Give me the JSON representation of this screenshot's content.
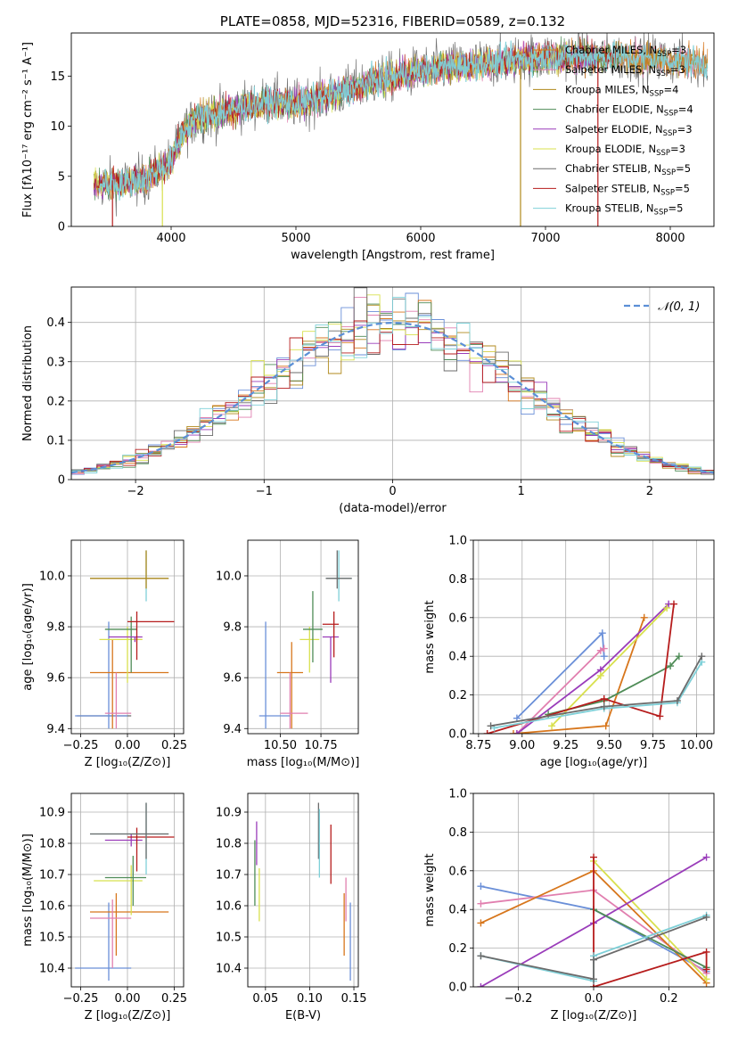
{
  "palette": [
    "#d7761c",
    "#e17faf",
    "#b08a1c",
    "#4f8c57",
    "#9a3cba",
    "#d8e04d",
    "#6b6b6b",
    "#b61c1c",
    "#7fd0d8"
  ],
  "chart_data": [
    {
      "id": "spectrum",
      "type": "line",
      "title": "PLATE=0858, MJD=52316, FIBERID=0589, z=0.132",
      "xlabel": "wavelength [Angstrom, rest frame]",
      "ylabel": "Flux [fλ10⁻¹⁷ erg cm⁻² s⁻¹ A⁻¹]",
      "xlim": [
        3200,
        8350
      ],
      "ylim": [
        0,
        19.3
      ],
      "xticks": [
        4000,
        5000,
        6000,
        7000,
        8000
      ],
      "yticks": [
        0,
        5,
        10,
        15
      ],
      "grid": false,
      "legend_position": "top-right",
      "continuum": {
        "x": [
          3380,
          3500,
          3600,
          3700,
          3800,
          3900,
          4000,
          4100,
          4200,
          4300,
          4400,
          4600,
          4800,
          5000,
          5200,
          5400,
          5600,
          5800,
          6000,
          6200,
          6400,
          6600,
          6800,
          7000,
          7200,
          7400,
          7600,
          7800,
          8000,
          8200,
          8300
        ],
        "y": [
          4.0,
          4.3,
          4.2,
          4.6,
          4.7,
          5.7,
          6.5,
          9.5,
          10.8,
          11.0,
          11.3,
          12.0,
          12.5,
          12.2,
          12.8,
          13.5,
          14.4,
          15.0,
          15.5,
          15.9,
          16.1,
          16.4,
          16.7,
          16.9,
          17.0,
          17.0,
          16.9,
          16.8,
          16.6,
          16.4,
          16.1
        ]
      },
      "series": [
        {
          "name": "Chabrier MILES, N",
          "sub": "SSP",
          "n": "=3"
        },
        {
          "name": "Salpeter MILES, N",
          "sub": "SSP",
          "n": "=3"
        },
        {
          "name": "Kroupa MILES, N",
          "sub": "SSP",
          "n": "=4"
        },
        {
          "name": "Chabrier ELODIE, N",
          "sub": "SSP",
          "n": "=4"
        },
        {
          "name": "Salpeter ELODIE, N",
          "sub": "SSP",
          "n": "=3"
        },
        {
          "name": "Kroupa ELODIE, N",
          "sub": "SSP",
          "n": "=3"
        },
        {
          "name": "Chabrier STELIB, N",
          "sub": "SSP",
          "n": "=5"
        },
        {
          "name": "Salpeter STELIB, N",
          "sub": "SSP",
          "n": "=5"
        },
        {
          "name": "Kroupa STELIB, N",
          "sub": "SSP",
          "n": "=5"
        }
      ],
      "spikes": [
        {
          "x": 3530,
          "y0": 0,
          "y1": 4.6
        },
        {
          "x": 3930,
          "y0": 0,
          "y1": 5.0
        },
        {
          "x": 6800,
          "y0": 0,
          "y1": 16.0
        },
        {
          "x": 7420,
          "y0": 0,
          "y1": 16.5
        }
      ]
    },
    {
      "id": "residuals",
      "type": "histogram",
      "xlabel": "(data-model)/error",
      "ylabel": "Normed distribution",
      "xlim": [
        -2.5,
        2.5
      ],
      "ylim": [
        0,
        0.49
      ],
      "xticks": [
        -2,
        -1,
        0,
        1,
        2
      ],
      "yticks": [
        0.0,
        0.1,
        0.2,
        0.3,
        0.4
      ],
      "grid": true,
      "bin_edges_start": -2.5,
      "bin_width": 0.1,
      "legend": [
        {
          "label": "𝒩(0, 1)",
          "style": "dashed"
        }
      ],
      "legend_position": "top-right"
    },
    {
      "id": "age-vs-Z",
      "type": "errorbar",
      "xlabel": "Z [log₁₀(Z/Z⊙)]",
      "ylabel": "age  [log₁₀(age/yr)]",
      "xlim": [
        -0.3,
        0.3
      ],
      "ylim": [
        9.38,
        10.14
      ],
      "xticks": [
        -0.25,
        0.0,
        0.25
      ],
      "xticklabels": [
        "−0.25",
        "0.00",
        "0.25"
      ],
      "yticks": [
        9.4,
        9.6,
        9.8,
        10.0
      ],
      "yticklabels": [
        "9.4",
        "9.6",
        "9.8",
        "10.0"
      ],
      "grid": true,
      "points": [
        {
          "x": -0.27,
          "xl": -0.27,
          "xh": 0.02,
          "y": 9.45,
          "yl": 9.45,
          "yh": 9.45,
          "c": 6
        },
        {
          "x": -0.1,
          "xl": -0.28,
          "xh": 0.0,
          "y": 9.45,
          "yl": 9.4,
          "yh": 9.82,
          "c": 9
        },
        {
          "x": -0.08,
          "xl": -0.2,
          "xh": 0.22,
          "y": 9.62,
          "yl": 9.4,
          "yh": 9.75,
          "c": 0
        },
        {
          "x": -0.06,
          "xl": -0.12,
          "xh": 0.02,
          "y": 9.46,
          "yl": 9.4,
          "yh": 9.62,
          "c": 1
        },
        {
          "x": 0.0,
          "xl": -0.15,
          "xh": 0.08,
          "y": 9.75,
          "yl": 9.58,
          "yh": 9.8,
          "c": 5
        },
        {
          "x": 0.02,
          "xl": -0.12,
          "xh": 0.05,
          "y": 9.79,
          "yl": 9.62,
          "yh": 9.84,
          "c": 3
        },
        {
          "x": 0.04,
          "xl": -0.1,
          "xh": 0.08,
          "y": 9.76,
          "yl": 9.74,
          "yh": 9.76,
          "c": 4
        },
        {
          "x": 0.05,
          "xl": 0.0,
          "xh": 0.25,
          "y": 9.82,
          "yl": 9.67,
          "yh": 9.86,
          "c": 7
        },
        {
          "x": 0.1,
          "xl": -0.2,
          "xh": 0.22,
          "y": 9.99,
          "yl": 9.9,
          "yh": 10.1,
          "c": 8
        },
        {
          "x": 0.1,
          "xl": -0.2,
          "xh": 0.22,
          "y": 9.99,
          "yl": 9.95,
          "yh": 10.1,
          "c": 2
        }
      ]
    },
    {
      "id": "age-vs-mass",
      "type": "errorbar",
      "xlabel": "mass [log₁₀(M/M⊙)]",
      "ylabel": "",
      "xlim": [
        10.3,
        10.98
      ],
      "ylim": [
        9.38,
        10.14
      ],
      "xticks": [
        10.5,
        10.75
      ],
      "xticklabels": [
        "10.50",
        "10.75"
      ],
      "yticks": [
        9.4,
        9.6,
        9.8,
        10.0
      ],
      "yticklabels": [
        "9.4",
        "9.6",
        "9.8",
        "10.0"
      ],
      "grid": true,
      "points": [
        {
          "x": 10.41,
          "xl": 10.37,
          "xh": 10.56,
          "y": 9.45,
          "yl": 9.4,
          "yh": 9.82,
          "c": 9
        },
        {
          "x": 10.57,
          "xl": 10.48,
          "xh": 10.64,
          "y": 9.62,
          "yl": 9.4,
          "yh": 9.74,
          "c": 0
        },
        {
          "x": 10.56,
          "xl": 10.5,
          "xh": 10.67,
          "y": 9.46,
          "yl": 9.4,
          "yh": 9.62,
          "c": 1
        },
        {
          "x": 10.68,
          "xl": 10.62,
          "xh": 10.74,
          "y": 9.75,
          "yl": 9.62,
          "yh": 9.8,
          "c": 5
        },
        {
          "x": 10.7,
          "xl": 10.64,
          "xh": 10.76,
          "y": 9.79,
          "yl": 9.66,
          "yh": 9.94,
          "c": 3
        },
        {
          "x": 10.81,
          "xl": 10.76,
          "xh": 10.86,
          "y": 9.76,
          "yl": 9.58,
          "yh": 9.76,
          "c": 4
        },
        {
          "x": 10.83,
          "xl": 10.76,
          "xh": 10.86,
          "y": 9.81,
          "yl": 9.68,
          "yh": 9.86,
          "c": 7
        },
        {
          "x": 10.86,
          "xl": 10.78,
          "xh": 10.94,
          "y": 9.99,
          "yl": 9.9,
          "yh": 10.1,
          "c": 8
        },
        {
          "x": 10.85,
          "xl": 10.78,
          "xh": 10.94,
          "y": 9.99,
          "yl": 9.95,
          "yh": 10.1,
          "c": 6
        }
      ]
    },
    {
      "id": "massweight-vs-age",
      "type": "line",
      "xlabel": "age  [log₁₀(age/yr)]",
      "ylabel": "mass weight",
      "xlim": [
        8.72,
        10.1
      ],
      "ylim": [
        0,
        1
      ],
      "xticks": [
        8.75,
        9.0,
        9.25,
        9.5,
        9.75,
        10.0
      ],
      "xticklabels": [
        "8.75",
        "9.00",
        "9.25",
        "9.50",
        "9.75",
        "10.00"
      ],
      "yticks": [
        0.0,
        0.2,
        0.4,
        0.6,
        0.8,
        1.0
      ],
      "yticklabels": [
        "0.0",
        "0.2",
        "0.4",
        "0.6",
        "0.8",
        "1.0"
      ],
      "grid": true,
      "series": [
        {
          "c": 9,
          "x": [
            8.97,
            9.46,
            9.47
          ],
          "y": [
            0.08,
            0.52,
            0.4
          ]
        },
        {
          "c": 1,
          "x": [
            8.97,
            9.45,
            9.47
          ],
          "y": [
            0.0,
            0.43,
            0.44
          ]
        },
        {
          "c": 0,
          "x": [
            8.95,
            9.48,
            9.7
          ],
          "y": [
            0.0,
            0.04,
            0.6
          ]
        },
        {
          "c": 4,
          "x": [
            8.97,
            9.45,
            9.84
          ],
          "y": [
            0.0,
            0.33,
            0.67
          ]
        },
        {
          "c": 5,
          "x": [
            9.17,
            9.45,
            9.83
          ],
          "y": [
            0.04,
            0.3,
            0.65
          ]
        },
        {
          "c": 3,
          "x": [
            9.15,
            9.47,
            9.85,
            9.9
          ],
          "y": [
            0.1,
            0.17,
            0.35,
            0.4
          ]
        },
        {
          "c": 7,
          "x": [
            8.8,
            9.47,
            9.79,
            9.87
          ],
          "y": [
            0.0,
            0.18,
            0.09,
            0.67
          ]
        },
        {
          "c": 8,
          "x": [
            8.84,
            9.47,
            9.89,
            10.03
          ],
          "y": [
            0.03,
            0.13,
            0.16,
            0.37
          ]
        },
        {
          "c": 6,
          "x": [
            8.82,
            9.47,
            9.89,
            10.03
          ],
          "y": [
            0.04,
            0.14,
            0.17,
            0.4
          ]
        }
      ]
    },
    {
      "id": "mass-vs-Z",
      "type": "errorbar",
      "xlabel": "Z [log₁₀(Z/Z⊙)]",
      "ylabel": "mass [log₁₀(M/M⊙)]",
      "xlim": [
        -0.3,
        0.3
      ],
      "ylim": [
        10.34,
        10.96
      ],
      "xticks": [
        -0.25,
        0.0,
        0.25
      ],
      "xticklabels": [
        "−0.25",
        "0.00",
        "0.25"
      ],
      "yticks": [
        10.4,
        10.5,
        10.6,
        10.7,
        10.8,
        10.9
      ],
      "yticklabels": [
        "10.4",
        "10.5",
        "10.6",
        "10.7",
        "10.8",
        "10.9"
      ],
      "grid": true,
      "points": [
        {
          "x": -0.1,
          "xl": -0.28,
          "xh": 0.02,
          "y": 10.4,
          "yl": 10.36,
          "yh": 10.61,
          "c": 9
        },
        {
          "x": -0.06,
          "xl": -0.2,
          "xh": 0.22,
          "y": 10.58,
          "yl": 10.44,
          "yh": 10.64,
          "c": 0
        },
        {
          "x": -0.08,
          "xl": -0.2,
          "xh": 0.02,
          "y": 10.56,
          "yl": 10.4,
          "yh": 10.62,
          "c": 1
        },
        {
          "x": 0.02,
          "xl": -0.18,
          "xh": 0.08,
          "y": 10.68,
          "yl": 10.57,
          "yh": 10.73,
          "c": 5
        },
        {
          "x": 0.03,
          "xl": -0.12,
          "xh": 0.1,
          "y": 10.69,
          "yl": 10.6,
          "yh": 10.76,
          "c": 3
        },
        {
          "x": 0.02,
          "xl": -0.12,
          "xh": 0.08,
          "y": 10.81,
          "yl": 10.79,
          "yh": 10.83,
          "c": 4
        },
        {
          "x": 0.05,
          "xl": 0.0,
          "xh": 0.25,
          "y": 10.82,
          "yl": 10.71,
          "yh": 10.85,
          "c": 7
        },
        {
          "x": 0.1,
          "xl": -0.2,
          "xh": 0.22,
          "y": 10.83,
          "yl": 10.7,
          "yh": 10.93,
          "c": 8
        },
        {
          "x": 0.1,
          "xl": -0.2,
          "xh": 0.22,
          "y": 10.83,
          "yl": 10.75,
          "yh": 10.93,
          "c": 6
        }
      ]
    },
    {
      "id": "mass-vs-ebv",
      "type": "errorbar",
      "xlabel": "E(B-V)",
      "ylabel": "",
      "xlim": [
        0.03,
        0.155
      ],
      "ylim": [
        10.34,
        10.96
      ],
      "xticks": [
        0.05,
        0.1,
        0.15
      ],
      "xticklabels": [
        "0.05",
        "0.10",
        "0.15"
      ],
      "yticks": [
        10.4,
        10.5,
        10.6,
        10.7,
        10.8,
        10.9
      ],
      "yticklabels": [
        "10.4",
        "10.5",
        "10.6",
        "10.7",
        "10.8",
        "10.9"
      ],
      "grid": true,
      "points": [
        {
          "x": 0.038,
          "xl": 0.038,
          "xh": 0.038,
          "y": 10.7,
          "yl": 10.6,
          "yh": 10.81,
          "c": 3
        },
        {
          "x": 0.04,
          "xl": 0.04,
          "xh": 0.04,
          "y": 10.8,
          "yl": 10.73,
          "yh": 10.87,
          "c": 4
        },
        {
          "x": 0.043,
          "xl": 0.043,
          "xh": 0.043,
          "y": 10.62,
          "yl": 10.55,
          "yh": 10.72,
          "c": 5
        },
        {
          "x": 0.11,
          "xl": 0.11,
          "xh": 0.11,
          "y": 10.85,
          "yl": 10.75,
          "yh": 10.93,
          "c": 6
        },
        {
          "x": 0.111,
          "xl": 0.111,
          "xh": 0.111,
          "y": 10.8,
          "yl": 10.69,
          "yh": 10.91,
          "c": 8
        },
        {
          "x": 0.124,
          "xl": 0.124,
          "xh": 0.124,
          "y": 10.78,
          "yl": 10.67,
          "yh": 10.86,
          "c": 7
        },
        {
          "x": 0.139,
          "xl": 0.139,
          "xh": 0.139,
          "y": 10.55,
          "yl": 10.44,
          "yh": 10.64,
          "c": 0
        },
        {
          "x": 0.141,
          "xl": 0.141,
          "xh": 0.141,
          "y": 10.62,
          "yl": 10.55,
          "yh": 10.69,
          "c": 1
        },
        {
          "x": 0.146,
          "xl": 0.146,
          "xh": 0.146,
          "y": 10.48,
          "yl": 10.36,
          "yh": 10.61,
          "c": 9
        }
      ]
    },
    {
      "id": "massweight-vs-Z",
      "type": "line",
      "xlabel": "Z [log₁₀(Z/Z⊙)]",
      "ylabel": "mass weight",
      "xlim": [
        -0.32,
        0.32
      ],
      "ylim": [
        0,
        1
      ],
      "xticks": [
        -0.2,
        0.0,
        0.2
      ],
      "xticklabels": [
        "−0.2",
        "0.0",
        "0.2"
      ],
      "yticks": [
        0.0,
        0.2,
        0.4,
        0.6,
        0.8,
        1.0
      ],
      "yticklabels": [
        "0.0",
        "0.2",
        "0.4",
        "0.6",
        "0.8",
        "1.0"
      ],
      "grid": true,
      "series": [
        {
          "c": 9,
          "x": [
            -0.3,
            0.0,
            0.3
          ],
          "y": [
            0.52,
            0.4,
            0.08
          ]
        },
        {
          "c": 1,
          "x": [
            -0.3,
            0.0,
            0.3
          ],
          "y": [
            0.43,
            0.5,
            0.07
          ]
        },
        {
          "c": 0,
          "x": [
            -0.3,
            0.0,
            0.3
          ],
          "y": [
            0.33,
            0.6,
            0.02
          ]
        },
        {
          "c": 5,
          "x": [
            0.0,
            0.3
          ],
          "y": [
            0.65,
            0.04
          ]
        },
        {
          "c": 4,
          "x": [
            -0.3,
            0.0,
            0.3
          ],
          "y": [
            0.0,
            0.33,
            0.67
          ]
        },
        {
          "c": 3,
          "x": [
            0.0,
            0.3
          ],
          "y": [
            0.4,
            0.1
          ]
        },
        {
          "c": 7,
          "x": [
            0.0,
            0.0,
            0.3,
            0.3
          ],
          "y": [
            0.67,
            0.0,
            0.18,
            0.09
          ]
        },
        {
          "c": 8,
          "x": [
            -0.3,
            0.0,
            0.0,
            0.3
          ],
          "y": [
            0.16,
            0.03,
            0.16,
            0.37
          ]
        },
        {
          "c": 6,
          "x": [
            -0.3,
            0.0,
            0.0,
            0.3
          ],
          "y": [
            0.16,
            0.04,
            0.14,
            0.36
          ]
        }
      ]
    }
  ]
}
